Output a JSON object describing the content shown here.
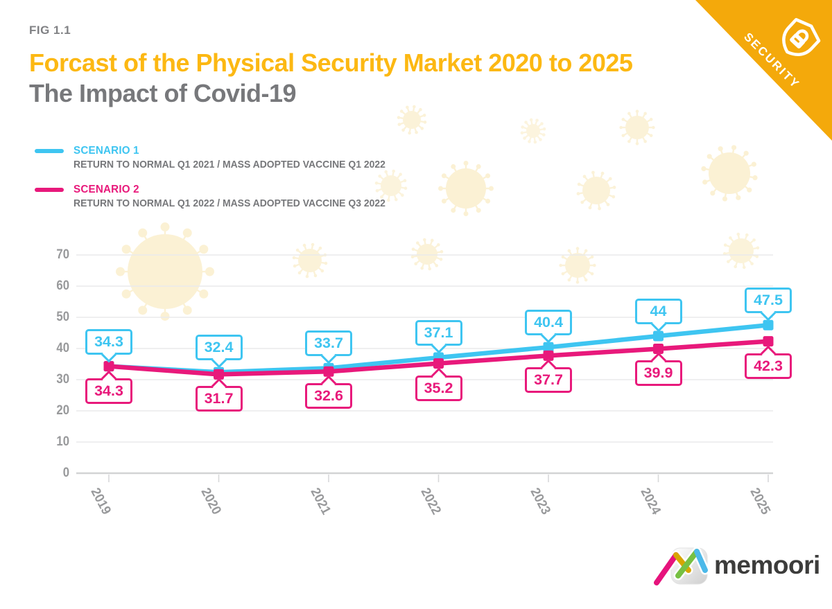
{
  "header": {
    "fig_label": "FIG 1.1",
    "title": "Forcast of the Physical Security Market 2020 to 2025",
    "subtitle": "The Impact of Covid-19"
  },
  "corner_badge": {
    "label": "SECURITY",
    "icon": "shield-lock-icon",
    "background_color": "#F4A90B",
    "text_color": "#FFFFFF"
  },
  "legend": {
    "items": [
      {
        "name": "SCENARIO 1",
        "description": "RETURN TO NORMAL Q1 2021 / MASS ADOPTED VACCINE Q1 2022",
        "color": "#3EC5F1"
      },
      {
        "name": "SCENARIO 2",
        "description": "RETURN TO NORMAL Q1 2022 / MASS ADOPTED VACCINE Q3 2022",
        "color": "#E8197B"
      }
    ]
  },
  "chart_data": {
    "type": "line",
    "categories": [
      "2019",
      "2020",
      "2021",
      "2022",
      "2023",
      "2024",
      "2025"
    ],
    "series": [
      {
        "name": "Scenario 1",
        "color": "#3EC5F1",
        "values": [
          34.3,
          32.4,
          33.7,
          37.1,
          40.4,
          44,
          47.5
        ],
        "data_label_position": "above"
      },
      {
        "name": "Scenario 2",
        "color": "#E8197B",
        "values": [
          34.3,
          31.7,
          32.6,
          35.2,
          37.7,
          39.9,
          42.3
        ],
        "data_label_position": "below"
      }
    ],
    "ylim": [
      0,
      70
    ],
    "yticks": [
      0,
      10,
      20,
      30,
      40,
      50,
      60,
      70
    ],
    "xlabel": "",
    "ylabel": "",
    "grid": "horizontal",
    "legend_position": "top-left",
    "data_labels": "boxed-callouts",
    "marker": "square"
  },
  "footer": {
    "logo_text": "memoori"
  },
  "colors": {
    "title_accent": "#FCB813",
    "title_gray": "#77787B",
    "axis_label": "#98999B",
    "gridline": "#EAEAEB",
    "axis_line": "#D2D3D4",
    "scenario1": "#3EC5F1",
    "scenario2": "#E8197B",
    "virus_decoration": "#FBF1D4",
    "badge_orange": "#F4A90B"
  }
}
